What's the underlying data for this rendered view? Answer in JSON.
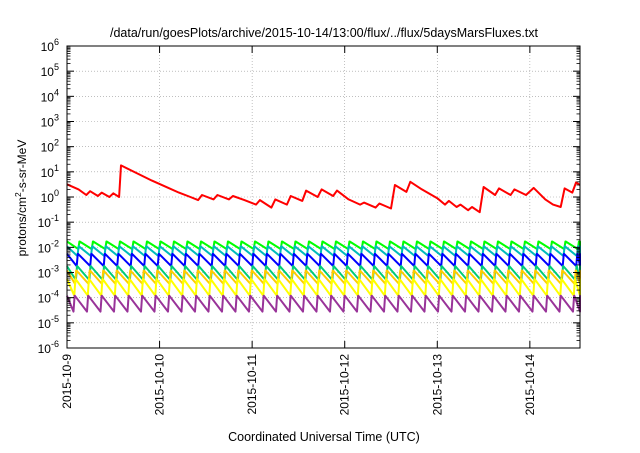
{
  "chart_data": {
    "type": "line",
    "title": "/data/run/goesPlots/archive/2015-10-14/13:00/flux/../flux/5daysMarsFluxes.txt",
    "xlabel": "Coordinated Universal Time (UTC)",
    "ylabel_main": "protons/cm",
    "ylabel_sup": "2",
    "ylabel_rest": "-s-sr-MeV",
    "yscale": "log",
    "ylim": [
      1e-06,
      1000000.0
    ],
    "xlim": [
      "2015-10-09",
      "2015-10-14 13:00"
    ],
    "grid": true,
    "xticks": [
      "2015-10-9",
      "2015-10-10",
      "2015-10-11",
      "2015-10-12",
      "2015-10-13",
      "2015-10-14"
    ],
    "yticks": [
      {
        "base": "10",
        "exp": "-6"
      },
      {
        "base": "10",
        "exp": "-5"
      },
      {
        "base": "10",
        "exp": "-4"
      },
      {
        "base": "10",
        "exp": "-3"
      },
      {
        "base": "10",
        "exp": "-2"
      },
      {
        "base": "10",
        "exp": "-1"
      },
      {
        "base": "10",
        "exp": "0"
      },
      {
        "base": "10",
        "exp": "1"
      },
      {
        "base": "10",
        "exp": "2"
      },
      {
        "base": "10",
        "exp": "3"
      },
      {
        "base": "10",
        "exp": "4"
      },
      {
        "base": "10",
        "exp": "5"
      },
      {
        "base": "10",
        "exp": "6"
      }
    ],
    "series": [
      {
        "color": "#ff0000",
        "points": [
          [
            "2015-10-09 00:00",
            3.2
          ],
          [
            "2015-10-09 03:00",
            2.0
          ],
          [
            "2015-10-09 05:00",
            1.2
          ],
          [
            "2015-10-09 06:00",
            1.7
          ],
          [
            "2015-10-09 08:00",
            1.1
          ],
          [
            "2015-10-09 09:00",
            1.5
          ],
          [
            "2015-10-09 11:00",
            1.0
          ],
          [
            "2015-10-09 12:00",
            1.4
          ],
          [
            "2015-10-09 13:30",
            1.0
          ],
          [
            "2015-10-09 14:00",
            18
          ],
          [
            "2015-10-09 18:00",
            9
          ],
          [
            "2015-10-09 22:00",
            4.5
          ],
          [
            "2015-10-10 02:00",
            2.4
          ],
          [
            "2015-10-10 05:00",
            1.5
          ],
          [
            "2015-10-10 08:00",
            1.0
          ],
          [
            "2015-10-10 10:00",
            0.75
          ],
          [
            "2015-10-10 11:00",
            1.2
          ],
          [
            "2015-10-10 14:00",
            0.8
          ],
          [
            "2015-10-10 15:00",
            1.2
          ],
          [
            "2015-10-10 18:00",
            0.8
          ],
          [
            "2015-10-10 19:00",
            1.1
          ],
          [
            "2015-10-10 22:00",
            0.75
          ],
          [
            "2015-10-11 01:00",
            0.5
          ],
          [
            "2015-10-11 02:00",
            0.75
          ],
          [
            "2015-10-11 05:00",
            0.38
          ],
          [
            "2015-10-11 06:00",
            0.8
          ],
          [
            "2015-10-11 09:00",
            0.5
          ],
          [
            "2015-10-11 10:00",
            1.1
          ],
          [
            "2015-10-11 13:00",
            0.7
          ],
          [
            "2015-10-11 14:00",
            1.8
          ],
          [
            "2015-10-11 17:00",
            1.0
          ],
          [
            "2015-10-11 18:00",
            2.0
          ],
          [
            "2015-10-11 21:00",
            1.1
          ],
          [
            "2015-10-11 22:00",
            1.8
          ],
          [
            "2015-10-12 01:00",
            0.8
          ],
          [
            "2015-10-12 04:00",
            0.5
          ],
          [
            "2015-10-12 05:00",
            0.6
          ],
          [
            "2015-10-12 08:00",
            0.38
          ],
          [
            "2015-10-12 09:00",
            0.55
          ],
          [
            "2015-10-12 12:00",
            0.35
          ],
          [
            "2015-10-12 13:00",
            3.0
          ],
          [
            "2015-10-12 16:00",
            1.6
          ],
          [
            "2015-10-12 17:00",
            4.0
          ],
          [
            "2015-10-12 20:00",
            2.0
          ],
          [
            "2015-10-13 00:00",
            0.9
          ],
          [
            "2015-10-13 02:00",
            0.5
          ],
          [
            "2015-10-13 03:00",
            0.7
          ],
          [
            "2015-10-13 05:00",
            0.4
          ],
          [
            "2015-10-13 06:00",
            0.5
          ],
          [
            "2015-10-13 08:00",
            0.3
          ],
          [
            "2015-10-13 09:00",
            0.4
          ],
          [
            "2015-10-13 11:00",
            0.25
          ],
          [
            "2015-10-13 12:00",
            2.5
          ],
          [
            "2015-10-13 15:00",
            1.2
          ],
          [
            "2015-10-13 16:00",
            2.2
          ],
          [
            "2015-10-13 19:00",
            1.2
          ],
          [
            "2015-10-13 20:00",
            2.0
          ],
          [
            "2015-10-13 23:00",
            1.2
          ],
          [
            "2015-10-14 01:00",
            2.3
          ],
          [
            "2015-10-14 04:00",
            0.8
          ],
          [
            "2015-10-14 06:00",
            0.5
          ],
          [
            "2015-10-14 08:00",
            0.4
          ],
          [
            "2015-10-14 09:00",
            2.2
          ],
          [
            "2015-10-14 11:00",
            1.5
          ],
          [
            "2015-10-14 12:00",
            3.8
          ],
          [
            "2015-10-14 13:00",
            3.0
          ]
        ]
      },
      {
        "color": "#00ff00",
        "sawtooth": {
          "peak": 0.017,
          "trough": 0.0085,
          "period_hours": 3.5
        }
      },
      {
        "color": "#00bbbb",
        "sawtooth": {
          "peak": 0.011,
          "trough": 0.0045,
          "period_hours": 3.5
        }
      },
      {
        "color": "#0000ff",
        "sawtooth": {
          "peak": 0.0055,
          "trough": 0.0018,
          "period_hours": 3.5
        }
      },
      {
        "color": "#00cc77",
        "sawtooth": {
          "peak": 0.0018,
          "trough": 0.0005,
          "period_hours": 3.5
        }
      },
      {
        "color": "#ffcc00",
        "sawtooth": {
          "peak": 0.0012,
          "trough": 0.00035,
          "period_hours": 3.5
        }
      },
      {
        "color": "#ffff00",
        "sawtooth": {
          "peak": 0.00055,
          "trough": 0.00012,
          "period_hours": 3.5
        }
      },
      {
        "color": "#993399",
        "sawtooth": {
          "peak": 0.00012,
          "trough": 2.8e-05,
          "period_hours": 3.5
        }
      }
    ]
  }
}
